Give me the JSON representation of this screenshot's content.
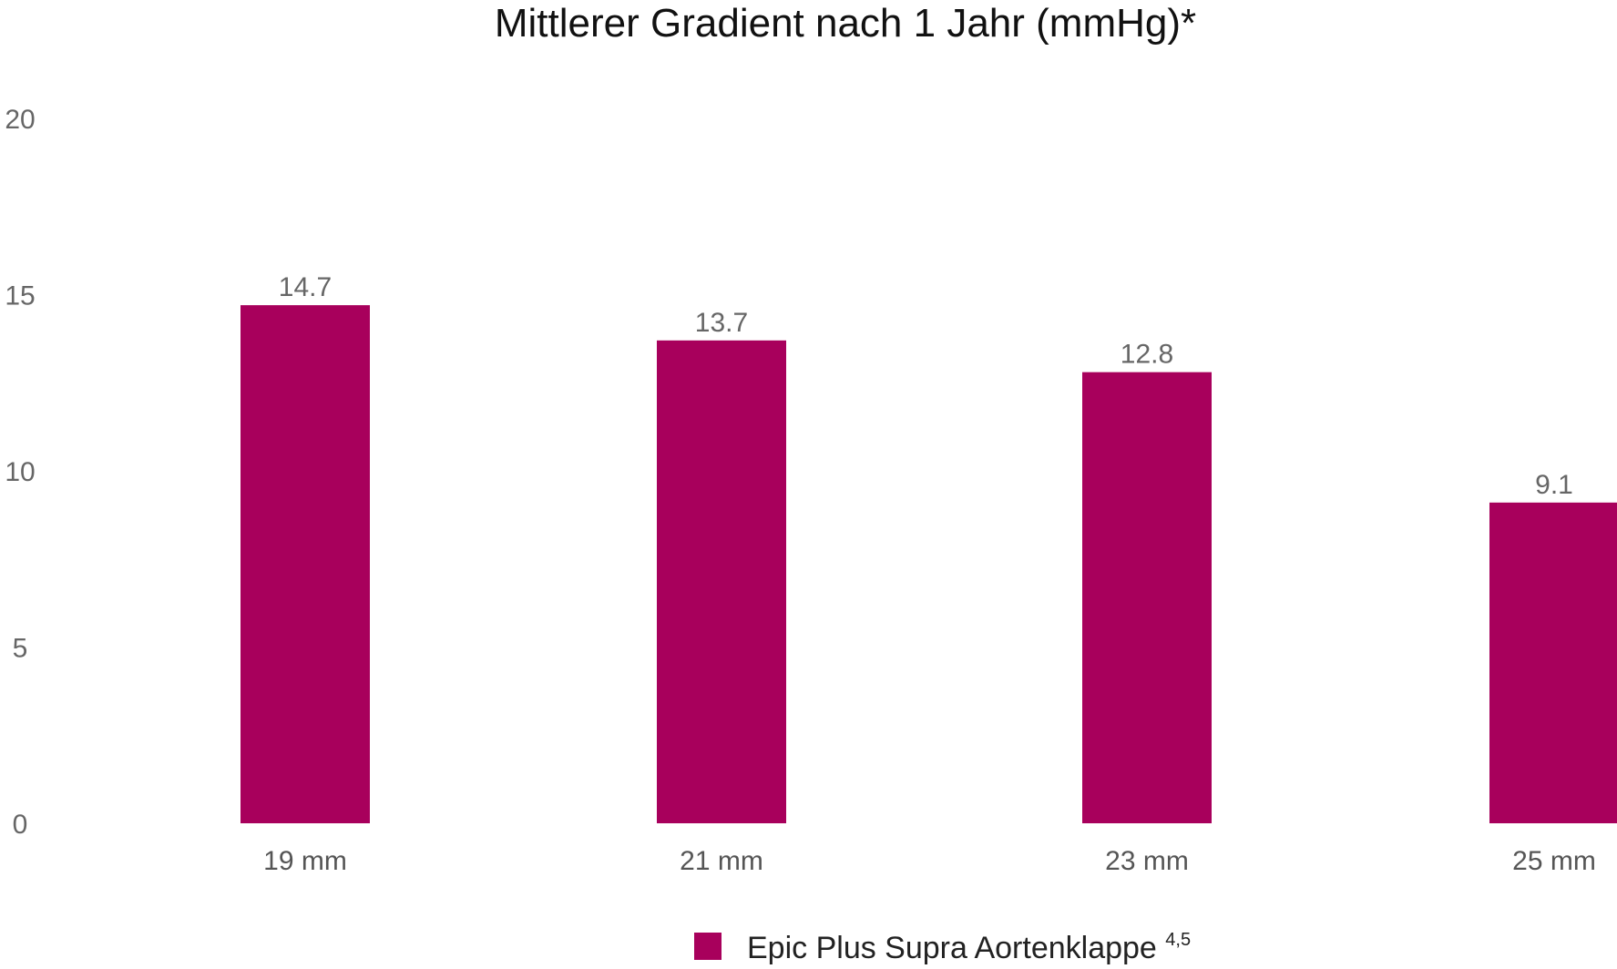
{
  "chart_data": {
    "type": "bar",
    "title": "Mittlerer Gradient nach 1 Jahr (mmHg)*",
    "categories": [
      "19 mm",
      "21 mm",
      "23 mm",
      "25 mm"
    ],
    "series": [
      {
        "name": "Epic Plus Supra Aortenklappe",
        "name_superscript": "4,5",
        "values": [
          14.7,
          13.7,
          12.8,
          9.1
        ],
        "color": "#A8005C"
      }
    ],
    "data_labels": [
      "14.7",
      "13.7",
      "12.8",
      "9.1"
    ],
    "yticks": [
      0,
      5,
      10,
      15,
      20
    ],
    "ylim": [
      0,
      20
    ],
    "xlabel": "",
    "ylabel": "",
    "grid": false,
    "legend_position": "bottom-center"
  }
}
